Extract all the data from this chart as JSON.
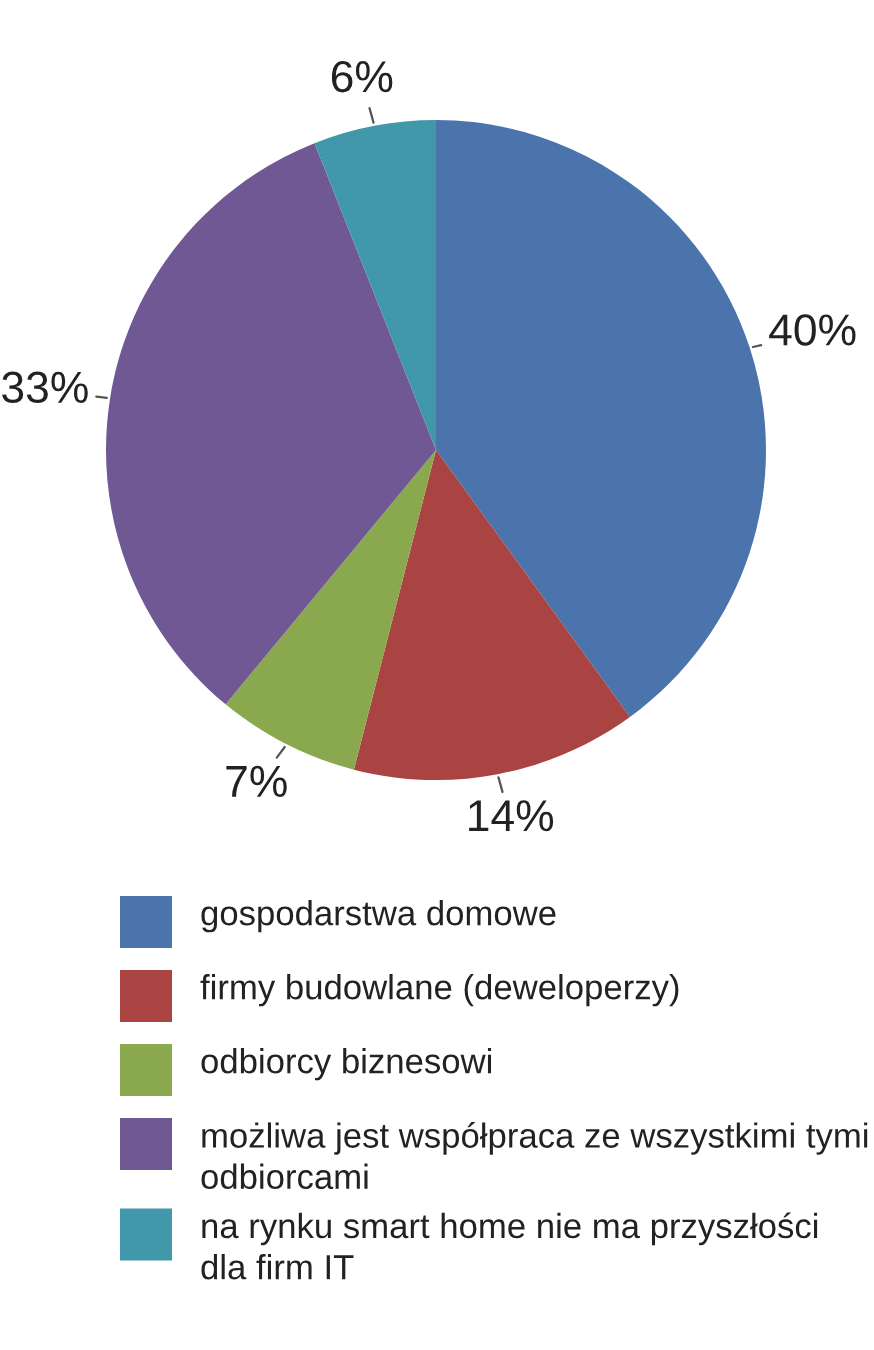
{
  "chart_data": {
    "type": "pie",
    "categories": [
      "gospodarstwa domowe",
      "firmy budowlane (deweloperzy)",
      "odbiorcy biznesowi",
      "możliwa jest współpraca ze wszystkimi tymi odbiorcami",
      "na rynku smart home nie ma przyszłości dla firm IT"
    ],
    "values": [
      40,
      14,
      7,
      33,
      6
    ],
    "value_labels": [
      "40%",
      "14%",
      "7%",
      "33%",
      "6%"
    ],
    "colors": [
      "#4a74ab",
      "#a94442",
      "#8aa84e",
      "#6f5893",
      "#4298ab"
    ],
    "legend": "bottom"
  }
}
